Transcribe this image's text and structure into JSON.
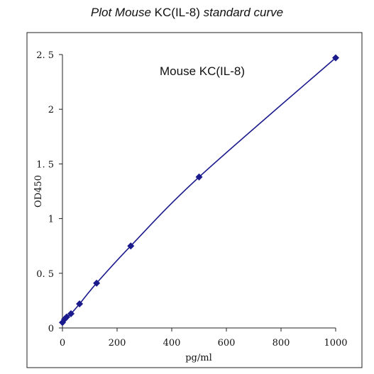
{
  "title": {
    "part1": "Plot Mouse",
    "part2": " KC(IL-8) ",
    "part3": "standard curve"
  },
  "chart_data": {
    "type": "line",
    "title": "Plot Mouse KC(IL-8) standard curve",
    "xlabel": "pg/ml",
    "ylabel": "OD450",
    "xlim": [
      0,
      1000
    ],
    "ylim": [
      0,
      2.5
    ],
    "xticks": [
      0,
      200,
      400,
      600,
      800,
      1000
    ],
    "yticks": [
      0,
      0.5,
      1,
      1.5,
      2,
      2.5
    ],
    "xtick_labels": [
      "0",
      "200",
      "400",
      "600",
      "800",
      "1000"
    ],
    "ytick_labels": [
      "0",
      "0. 5",
      "1",
      "1. 5",
      "2",
      "2. 5"
    ],
    "annotation": "Mouse KC(IL-8)",
    "grid": false,
    "series": [
      {
        "color": "#1a1a8c",
        "marker": "diamond",
        "x": [
          0,
          7.8,
          15.6,
          31.25,
          62.5,
          125,
          250,
          500,
          1000
        ],
        "y": [
          0.05,
          0.08,
          0.1,
          0.13,
          0.22,
          0.41,
          0.75,
          1.38,
          2.47
        ]
      }
    ]
  }
}
